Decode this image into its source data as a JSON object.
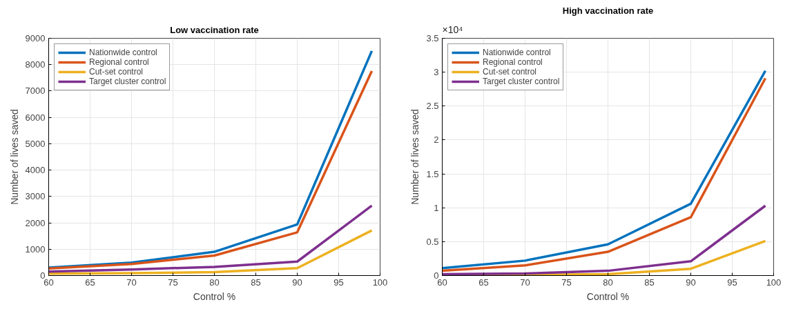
{
  "chart_data": [
    {
      "type": "line",
      "title": "Low vaccination rate",
      "xlabel": "Control %",
      "ylabel": "Number of lives saved",
      "x": [
        60,
        70,
        80,
        90,
        99
      ],
      "series": [
        {
          "name": "Nationwide control",
          "color": "#0072bd",
          "values": [
            300,
            490,
            900,
            1940,
            8520
          ]
        },
        {
          "name": "Regional control",
          "color": "#d95319",
          "values": [
            270,
            440,
            760,
            1640,
            7760
          ]
        },
        {
          "name": "Cut-set control",
          "color": "#edb120",
          "values": [
            70,
            90,
            130,
            280,
            1710
          ]
        },
        {
          "name": "Target cluster control",
          "color": "#7e2f8e",
          "values": [
            150,
            230,
            330,
            530,
            2650
          ]
        }
      ],
      "xlim": [
        60,
        100
      ],
      "xticks": [
        60,
        65,
        70,
        75,
        80,
        85,
        90,
        95,
        100
      ],
      "ylim": [
        0,
        9000
      ],
      "yticks": [
        0,
        1000,
        2000,
        3000,
        4000,
        5000,
        6000,
        7000,
        8000,
        9000
      ],
      "grid": true,
      "legend": "top left",
      "line_style": "solid",
      "marker": "none"
    },
    {
      "type": "line",
      "title": "High vaccination rate",
      "xlabel": "Control %",
      "ylabel": "Number of lives saved",
      "annotations": [
        "×10⁴"
      ],
      "x": [
        60,
        70,
        80,
        90,
        99
      ],
      "series": [
        {
          "name": "Nationwide control",
          "color": "#0072bd",
          "values": [
            0.11,
            0.22,
            0.46,
            1.06,
            3.02
          ]
        },
        {
          "name": "Regional control",
          "color": "#d95319",
          "values": [
            0.07,
            0.15,
            0.35,
            0.86,
            2.91
          ]
        },
        {
          "name": "Cut-set control",
          "color": "#edb120",
          "values": [
            0,
            0.01,
            0.02,
            0.1,
            0.51
          ]
        },
        {
          "name": "Target cluster control",
          "color": "#7e2f8e",
          "values": [
            0.02,
            0.03,
            0.07,
            0.21,
            1.03
          ]
        }
      ],
      "xlim": [
        60,
        100
      ],
      "xticks": [
        60,
        65,
        70,
        75,
        80,
        85,
        90,
        95,
        100
      ],
      "ylim": [
        0,
        3.5
      ],
      "yticks": [
        0,
        0.5,
        1,
        1.5,
        2,
        2.5,
        3,
        3.5
      ],
      "grid": true,
      "legend": "top left",
      "line_style": "solid",
      "marker": "none"
    }
  ]
}
